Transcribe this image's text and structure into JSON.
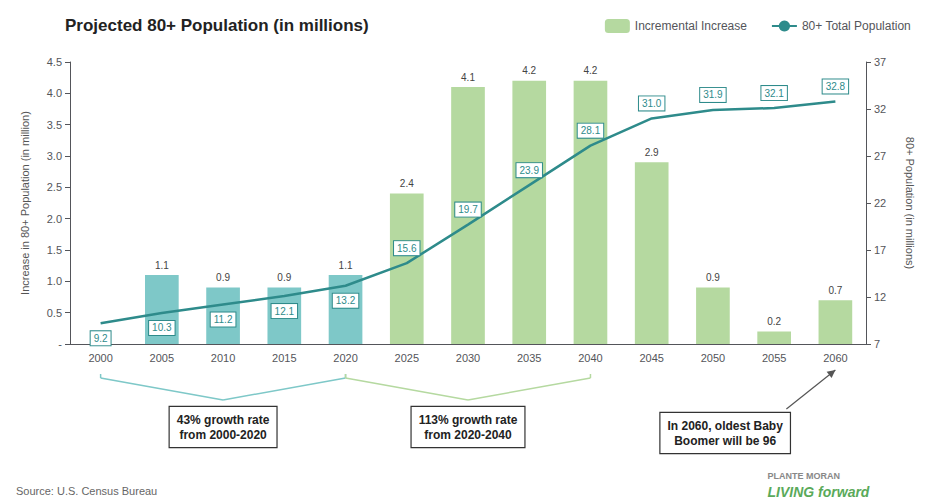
{
  "chart_data": {
    "type": "bar",
    "title": "Projected 80+ Population (in millions)",
    "categories": [
      "2000",
      "2005",
      "2010",
      "2015",
      "2020",
      "2025",
      "2030",
      "2035",
      "2040",
      "2045",
      "2050",
      "2055",
      "2060"
    ],
    "series": [
      {
        "name": "Incremental Increase",
        "type": "bar",
        "color": "#b5d9a0",
        "colors": [
          "#7ec8c8",
          "#7ec8c8",
          "#7ec8c8",
          "#7ec8c8",
          "#7ec8c8",
          "#b5d9a0",
          "#b5d9a0",
          "#b5d9a0",
          "#b5d9a0",
          "#b5d9a0",
          "#b5d9a0",
          "#b5d9a0",
          "#b5d9a0"
        ],
        "values": [
          null,
          1.1,
          0.9,
          0.9,
          1.1,
          2.4,
          4.1,
          4.2,
          4.2,
          2.9,
          0.9,
          0.2,
          0.7
        ],
        "data_labels": true
      },
      {
        "name": "80+ Total Population",
        "type": "line",
        "axis": "y2",
        "color": "#2e8b8b",
        "values": [
          9.2,
          10.3,
          11.2,
          12.1,
          13.2,
          15.6,
          19.7,
          23.9,
          28.1,
          31.0,
          31.9,
          32.1,
          32.8
        ],
        "value_labels": [
          "9.2",
          "10.3",
          "11.2",
          "12.1",
          "13.2",
          "15.6",
          "19.7",
          "23.9",
          "28.1",
          "31.0",
          "31.9",
          "32.1",
          "32.8"
        ],
        "data_labels": true
      }
    ],
    "ylabel": "Increase in 80+ Population (in million)",
    "y2label": "80+ Population (in millions)",
    "ylim": [
      0,
      4.5
    ],
    "yticks": [
      {
        "value": 0,
        "label": "-"
      },
      0.5,
      {
        "value": 1.0,
        "label": "1.0"
      },
      1.5,
      {
        "value": 2.0,
        "label": "2.0"
      },
      2.5,
      {
        "value": 3.0,
        "label": "3.0"
      },
      3.5,
      {
        "value": 4.0,
        "label": "4.0"
      },
      4.5
    ],
    "y2lim": [
      7.0,
      37.0
    ],
    "y2ticks": [
      7,
      12,
      17,
      22,
      27,
      32,
      37
    ],
    "grid": false,
    "legend": "upper right",
    "annotations": [
      "43% growth rate\nfrom 2000-2020",
      "113% growth rate\nfrom 2020-2040",
      "In 2060, oldest Baby\nBoomer will be 96"
    ],
    "source": "Source: U.S. Census Bureau",
    "credits": [
      "PLANTE MORAN",
      "LIVING forward"
    ]
  }
}
